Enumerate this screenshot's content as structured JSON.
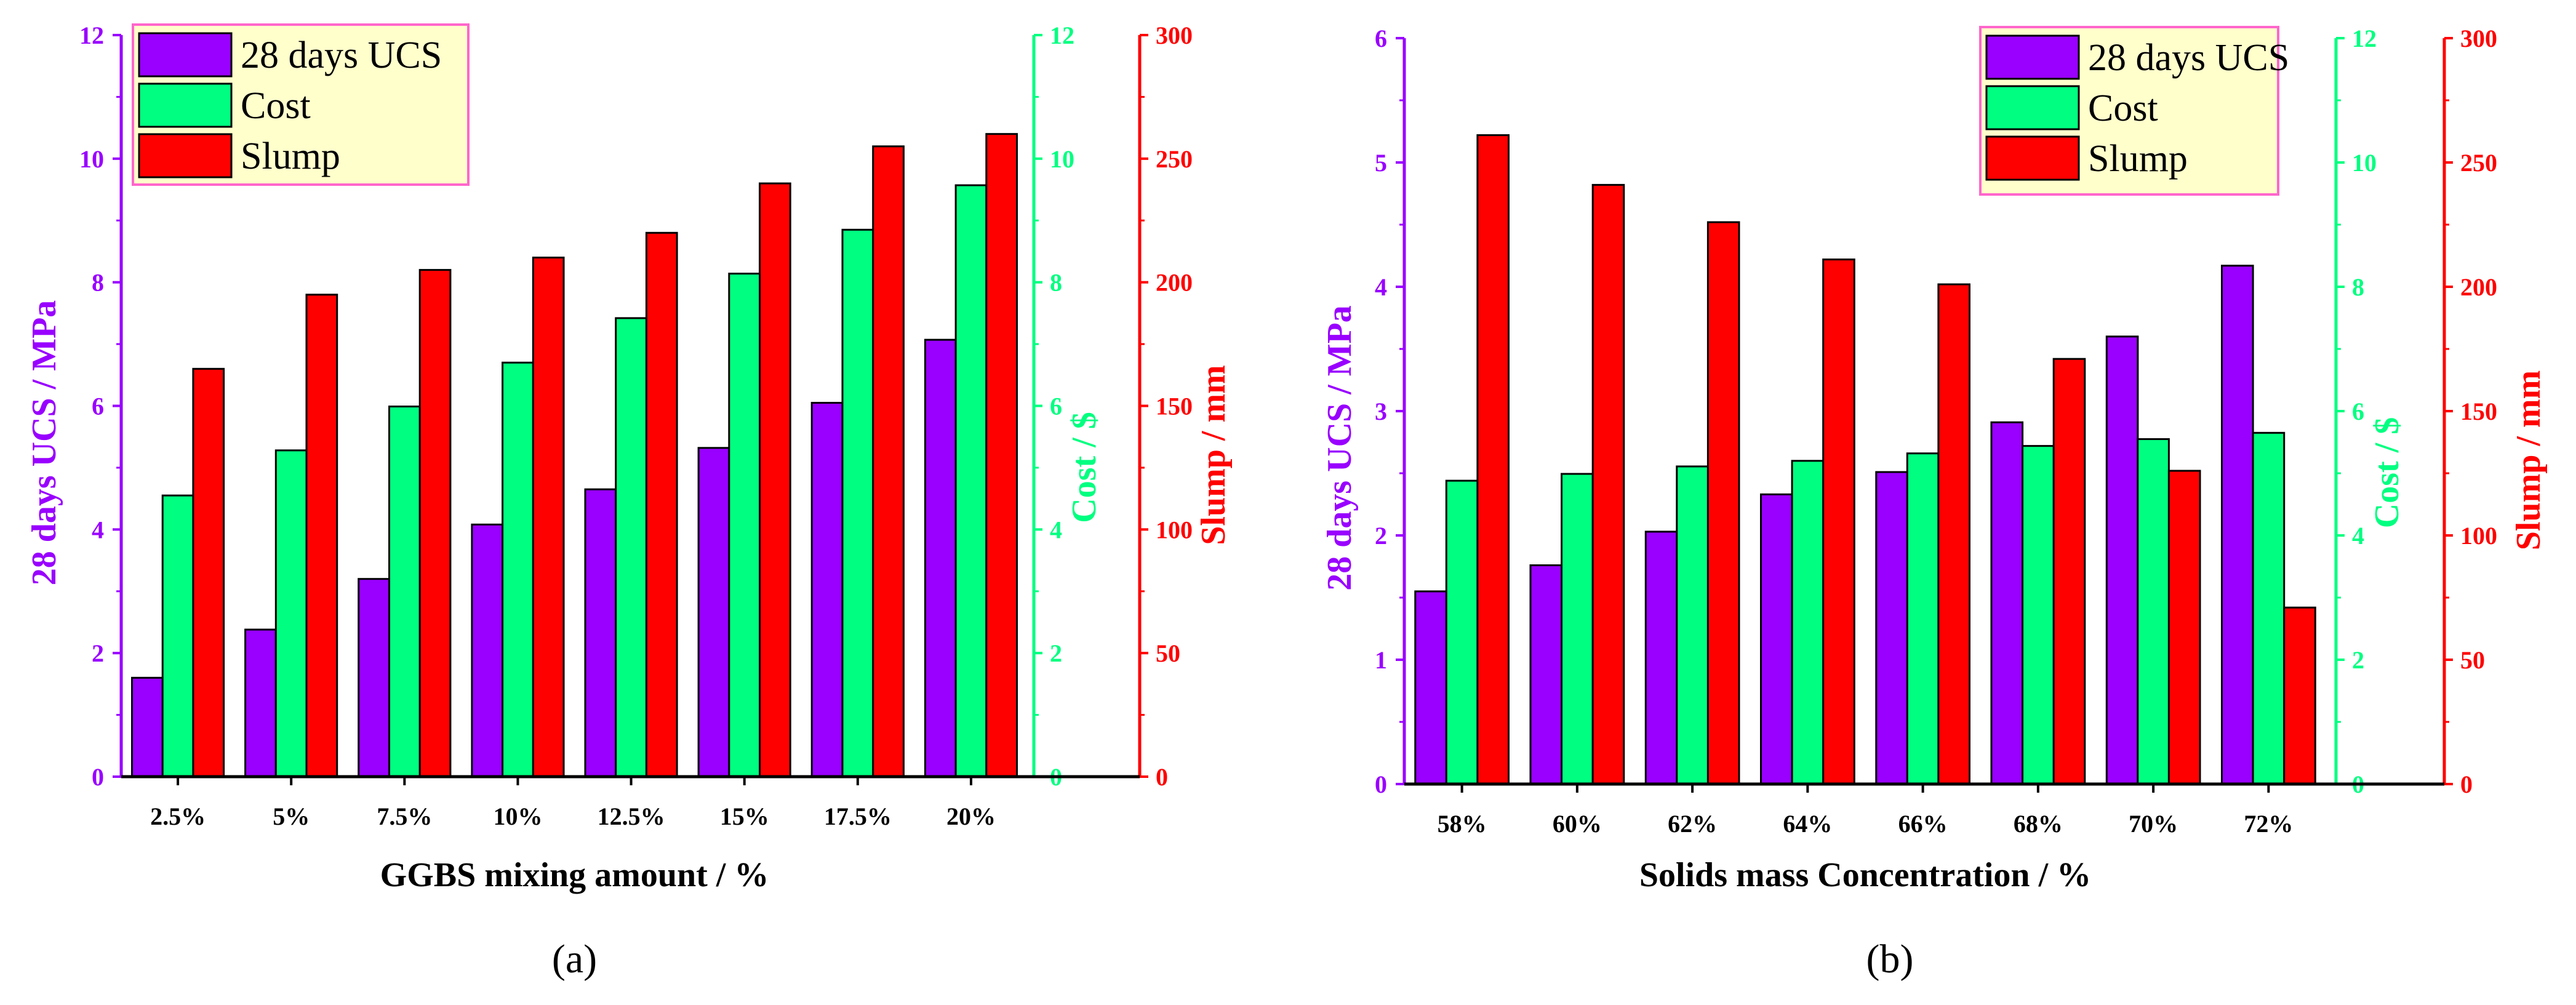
{
  "colors": {
    "ucs": "#9900ff",
    "cost": "#00ff80",
    "slump": "#ff0000",
    "legend_bg": "#ffffcc",
    "legend_border": "#ff66cc",
    "axis": "#000000"
  },
  "chart_data": [
    {
      "type": "bar",
      "caption": "(a)",
      "xlabel": "GGBS mixing amount / %",
      "categories": [
        "2.5%",
        "5%",
        "7.5%",
        "10%",
        "12.5%",
        "15%",
        "17.5%",
        "20%"
      ],
      "series": [
        {
          "name": "28 days UCS",
          "axis": "left",
          "values": [
            1.6,
            2.38,
            3.2,
            4.08,
            4.65,
            5.32,
            6.05,
            7.07
          ]
        },
        {
          "name": "Cost",
          "axis": "right1",
          "values": [
            4.55,
            5.28,
            5.99,
            6.7,
            7.42,
            8.14,
            8.85,
            9.57
          ]
        },
        {
          "name": "Slump",
          "axis": "right2",
          "values": [
            165,
            195,
            205,
            210,
            220,
            240,
            255,
            260
          ]
        }
      ],
      "y_left": {
        "label": "28 days UCS / MPa",
        "lim": [
          0,
          12
        ],
        "ticks": [
          "0",
          "2",
          "4",
          "6",
          "8",
          "10",
          "12"
        ]
      },
      "y_right1": {
        "label": "Cost / $",
        "lim": [
          0,
          12
        ],
        "ticks": [
          "0",
          "2",
          "4",
          "6",
          "8",
          "10",
          "12"
        ]
      },
      "y_right2": {
        "label": "Slump / mm",
        "lim": [
          0,
          300
        ],
        "ticks": [
          "0",
          "50",
          "100",
          "150",
          "200",
          "250",
          "300"
        ]
      },
      "legend": {
        "position": "top-left",
        "entries": [
          "28 days UCS",
          "Cost",
          "Slump"
        ]
      }
    },
    {
      "type": "bar",
      "caption": "(b)",
      "xlabel": "Solids mass Concentration / %",
      "categories": [
        "58%",
        "60%",
        "62%",
        "64%",
        "66%",
        "68%",
        "70%",
        "72%"
      ],
      "series": [
        {
          "name": "28 days UCS",
          "axis": "left",
          "values": [
            1.55,
            1.76,
            2.03,
            2.33,
            2.51,
            2.91,
            3.6,
            4.17
          ]
        },
        {
          "name": "Cost",
          "axis": "right1",
          "values": [
            4.88,
            4.99,
            5.11,
            5.2,
            5.32,
            5.44,
            5.55,
            5.65
          ]
        },
        {
          "name": "Slump",
          "axis": "right2",
          "values": [
            261,
            241,
            226,
            211,
            201,
            171,
            126,
            71
          ]
        }
      ],
      "y_left": {
        "label": "28 days UCS / MPa",
        "lim": [
          0,
          6
        ],
        "ticks": [
          "0",
          "1",
          "2",
          "3",
          "4",
          "5",
          "6"
        ]
      },
      "y_right1": {
        "label": "Cost / $",
        "lim": [
          0,
          12
        ],
        "ticks": [
          "0",
          "2",
          "4",
          "6",
          "8",
          "10",
          "12"
        ]
      },
      "y_right2": {
        "label": "Slump / mm",
        "lim": [
          0,
          300
        ],
        "ticks": [
          "0",
          "50",
          "100",
          "150",
          "200",
          "250",
          "300"
        ]
      },
      "legend": {
        "position": "top-right",
        "entries": [
          "28 days UCS",
          "Cost",
          "Slump"
        ]
      }
    }
  ]
}
